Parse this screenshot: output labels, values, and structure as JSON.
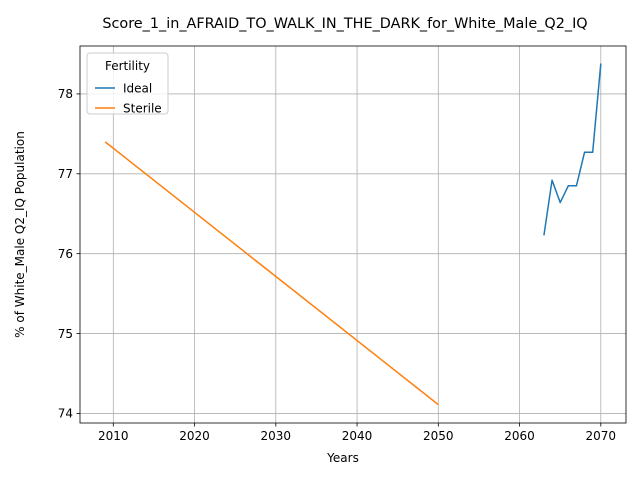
{
  "chart_data": {
    "type": "line",
    "title": "Score_1_in_AFRAID_TO_WALK_IN_THE_DARK_for_White_Male_Q2_IQ",
    "xlabel": "Years",
    "ylabel": "% of White_Male Q2_IQ Population",
    "xlim": [
      2005.9,
      2073.1
    ],
    "ylim": [
      73.88,
      78.6
    ],
    "xticks": [
      2010,
      2020,
      2030,
      2040,
      2050,
      2060,
      2070
    ],
    "yticks": [
      74,
      75,
      76,
      77,
      78
    ],
    "grid": true,
    "legend": {
      "title": "Fertility",
      "position": "top-left"
    },
    "series": [
      {
        "name": "Ideal",
        "color": "#1f77b4",
        "x": [
          2063,
          2064,
          2065,
          2066,
          2067,
          2068,
          2069,
          2070
        ],
        "y": [
          76.23,
          76.92,
          76.64,
          76.85,
          76.85,
          77.27,
          77.27,
          78.38
        ]
      },
      {
        "name": "Sterile",
        "color": "#ff7f0e",
        "x": [
          2009,
          2050
        ],
        "y": [
          77.4,
          74.11
        ]
      }
    ]
  }
}
